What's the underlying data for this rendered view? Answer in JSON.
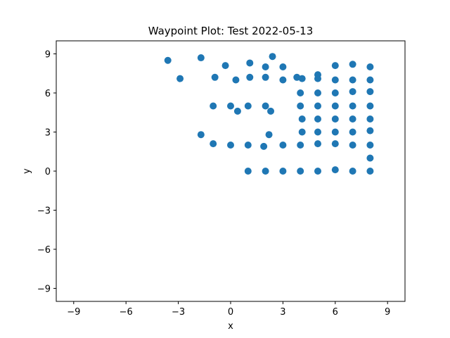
{
  "chart_data": {
    "type": "scatter",
    "title": "Waypoint Plot: Test 2022-05-13",
    "xlabel": "x",
    "ylabel": "y",
    "xlim": [
      -10,
      10
    ],
    "ylim": [
      -10,
      10
    ],
    "xticks": [
      -9,
      -6,
      -3,
      0,
      3,
      6,
      9
    ],
    "yticks": [
      -9,
      -6,
      -3,
      0,
      3,
      6,
      9
    ],
    "xtick_labels": [
      "−9",
      "−6",
      "−3",
      "0",
      "3",
      "6",
      "9"
    ],
    "ytick_labels": [
      "−9",
      "−6",
      "−3",
      "0",
      "3",
      "6",
      "9"
    ],
    "grid": false,
    "marker_color": "#1f77b4",
    "points": [
      [
        -3.6,
        8.5
      ],
      [
        -1.7,
        8.7
      ],
      [
        -2.9,
        7.1
      ],
      [
        -0.9,
        7.2
      ],
      [
        -0.3,
        8.1
      ],
      [
        0.3,
        7.0
      ],
      [
        1.1,
        8.3
      ],
      [
        1.1,
        7.2
      ],
      [
        2.0,
        8.0
      ],
      [
        2.0,
        7.2
      ],
      [
        2.4,
        8.8
      ],
      [
        3.0,
        8.0
      ],
      [
        3.0,
        7.0
      ],
      [
        3.8,
        7.2
      ],
      [
        4.1,
        7.1
      ],
      [
        5.0,
        7.4
      ],
      [
        5.0,
        7.1
      ],
      [
        6.0,
        8.1
      ],
      [
        6.0,
        7.0
      ],
      [
        7.0,
        8.2
      ],
      [
        7.0,
        7.0
      ],
      [
        8.0,
        8.0
      ],
      [
        8.0,
        7.0
      ],
      [
        4.0,
        6.0
      ],
      [
        5.0,
        6.0
      ],
      [
        6.0,
        6.0
      ],
      [
        7.0,
        6.1
      ],
      [
        8.0,
        6.1
      ],
      [
        -1.0,
        5.0
      ],
      [
        0.0,
        5.0
      ],
      [
        0.4,
        4.6
      ],
      [
        1.0,
        5.0
      ],
      [
        2.0,
        5.0
      ],
      [
        2.3,
        4.6
      ],
      [
        4.0,
        5.0
      ],
      [
        5.0,
        5.0
      ],
      [
        6.0,
        5.0
      ],
      [
        7.0,
        5.0
      ],
      [
        8.0,
        5.0
      ],
      [
        4.1,
        4.0
      ],
      [
        5.0,
        4.0
      ],
      [
        6.0,
        4.0
      ],
      [
        7.0,
        4.0
      ],
      [
        8.0,
        4.0
      ],
      [
        -1.7,
        2.8
      ],
      [
        2.2,
        2.8
      ],
      [
        4.1,
        3.0
      ],
      [
        5.0,
        3.0
      ],
      [
        6.0,
        3.0
      ],
      [
        7.0,
        3.0
      ],
      [
        8.0,
        3.1
      ],
      [
        -1.0,
        2.1
      ],
      [
        0.0,
        2.0
      ],
      [
        1.0,
        2.0
      ],
      [
        1.9,
        1.9
      ],
      [
        3.0,
        2.0
      ],
      [
        4.0,
        2.0
      ],
      [
        5.0,
        2.1
      ],
      [
        6.0,
        2.1
      ],
      [
        7.0,
        2.0
      ],
      [
        8.0,
        2.0
      ],
      [
        8.0,
        1.0
      ],
      [
        1.0,
        0.0
      ],
      [
        2.0,
        0.0
      ],
      [
        3.0,
        0.0
      ],
      [
        4.0,
        0.0
      ],
      [
        5.0,
        0.0
      ],
      [
        6.0,
        0.1
      ],
      [
        7.0,
        0.0
      ],
      [
        8.0,
        0.0
      ]
    ]
  }
}
